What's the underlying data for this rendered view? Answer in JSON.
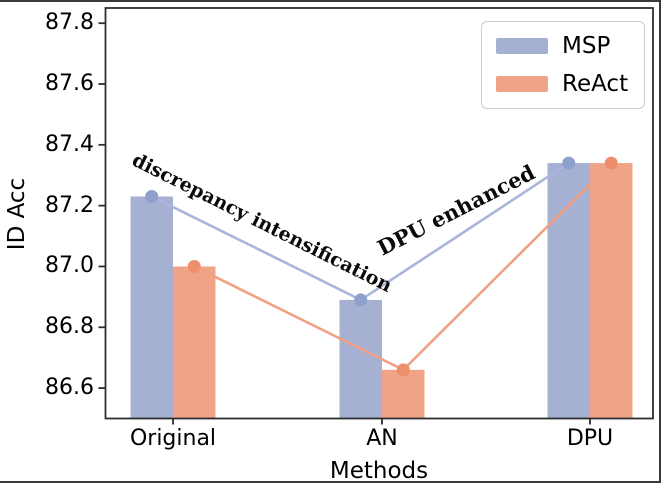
{
  "chart_data": {
    "type": "bar",
    "categories": [
      "Original",
      "AN",
      "DPU"
    ],
    "series": [
      {
        "name": "MSP",
        "values": [
          87.23,
          86.89,
          87.34
        ],
        "bar_color": "#a5b0d2",
        "line_color": "#a9b5da",
        "marker_color": "#8fa0cc"
      },
      {
        "name": "ReAct",
        "values": [
          87.0,
          86.66,
          87.34
        ],
        "bar_color": "#f0a487",
        "line_color": "#f2a083",
        "marker_color": "#ee8f6b"
      }
    ],
    "title": "",
    "xlabel": "Methods",
    "ylabel": "ID Acc",
    "ylim": [
      86.5,
      87.85
    ],
    "yticks": [
      86.6,
      86.8,
      87.0,
      87.2,
      87.4,
      87.6,
      87.8
    ],
    "grid": false,
    "legend_position": "upper right",
    "annotations": [
      {
        "text": "discrepancy intensification",
        "rotation_deg": 26.5
      },
      {
        "text": "DPU enhanced",
        "rotation_deg": -27
      }
    ]
  }
}
